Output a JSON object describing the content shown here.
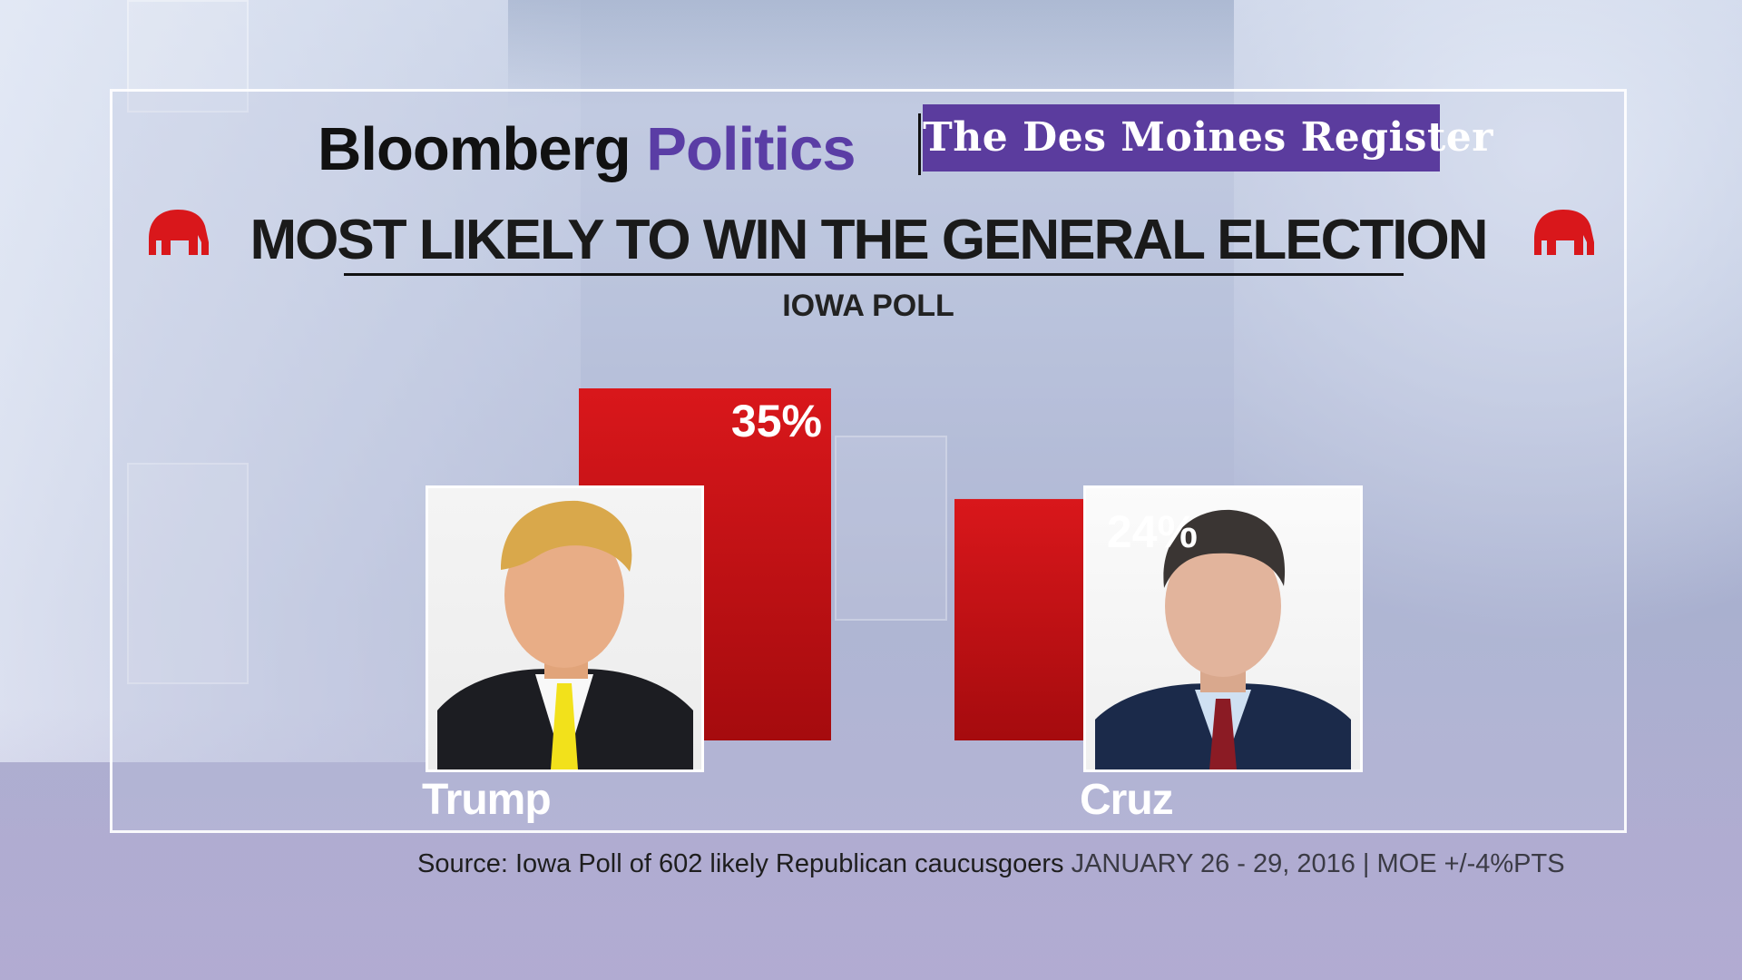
{
  "header": {
    "logo_bloomberg": "Bloomberg",
    "logo_politics": "Politics",
    "logo_dmr": "The Des Moines Register",
    "headline": "MOST LIKELY TO WIN THE GENERAL ELECTION",
    "subhead": "IOWA POLL"
  },
  "colors": {
    "bar": "#d9171b",
    "bar_dark": "#a50b0e",
    "politics_purple": "#5a3da5",
    "dmr_purple": "#5b3c9e",
    "elephant_red": "#d9171b"
  },
  "chart_data": {
    "type": "bar",
    "title": "MOST LIKELY TO WIN THE GENERAL ELECTION",
    "subtitle": "IOWA POLL",
    "categories": [
      "Trump",
      "Cruz"
    ],
    "values": [
      35,
      24
    ],
    "value_labels": [
      "35%",
      "24%"
    ],
    "ylim": [
      0,
      35
    ],
    "grid": false,
    "legend": "none"
  },
  "footer": {
    "source": "Source: Iowa Poll of 602 likely Republican caucusgoers",
    "dates": "JANUARY 26 - 29, 2016 | MOE +/-4%PTS"
  }
}
